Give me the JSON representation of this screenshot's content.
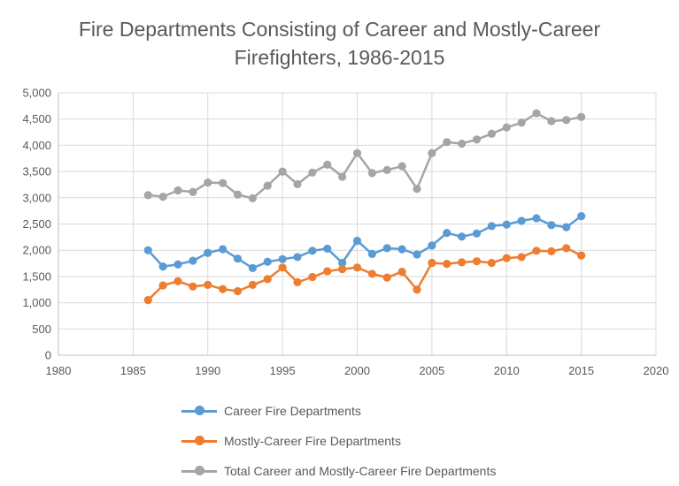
{
  "chart_data": {
    "type": "line",
    "title_line1": "Fire Departments Consisting of Career and Mostly-Career",
    "title_line2": "Firefighters, 1986-2015",
    "xlim": [
      1980,
      2020
    ],
    "ylim": [
      0,
      5000
    ],
    "x_ticks": [
      1980,
      1985,
      1990,
      1995,
      2000,
      2005,
      2010,
      2015,
      2020
    ],
    "y_ticks": [
      0,
      500,
      1000,
      1500,
      2000,
      2500,
      3000,
      3500,
      4000,
      4500,
      5000
    ],
    "y_tick_labels": [
      "0",
      "500",
      "1,000",
      "1,500",
      "2,000",
      "2,500",
      "3,000",
      "3,500",
      "4,000",
      "4,500",
      "5,000"
    ],
    "x": [
      1986,
      1987,
      1988,
      1989,
      1990,
      1991,
      1992,
      1993,
      1994,
      1995,
      1996,
      1997,
      1998,
      1999,
      2000,
      2001,
      2002,
      2003,
      2004,
      2005,
      2006,
      2007,
      2008,
      2009,
      2010,
      2011,
      2012,
      2013,
      2014,
      2015
    ],
    "series": [
      {
        "name": "Career Fire Departments",
        "color": "#5B9BD5",
        "values": [
          2000,
          1690,
          1730,
          1800,
          1950,
          2020,
          1840,
          1660,
          1780,
          1830,
          1870,
          1990,
          2030,
          1760,
          2180,
          1930,
          2040,
          2020,
          1920,
          2090,
          2330,
          2260,
          2320,
          2460,
          2490,
          2560,
          2610,
          2480,
          2440,
          2650
        ]
      },
      {
        "name": "Mostly-Career Fire Departments",
        "color": "#ED7D31",
        "values": [
          1050,
          1330,
          1410,
          1310,
          1340,
          1260,
          1220,
          1340,
          1450,
          1670,
          1390,
          1490,
          1600,
          1640,
          1670,
          1550,
          1480,
          1590,
          1250,
          1760,
          1740,
          1770,
          1790,
          1760,
          1850,
          1870,
          1990,
          1980,
          2040,
          1900
        ]
      },
      {
        "name": "Total Career and Mostly-Career Fire Departments",
        "color": "#A5A5A5",
        "values": [
          3050,
          3020,
          3140,
          3110,
          3290,
          3280,
          3060,
          2990,
          3230,
          3500,
          3260,
          3480,
          3630,
          3400,
          3850,
          3470,
          3530,
          3600,
          3170,
          3850,
          4060,
          4030,
          4110,
          4220,
          4340,
          4430,
          4610,
          4460,
          4480,
          4540
        ]
      }
    ]
  }
}
